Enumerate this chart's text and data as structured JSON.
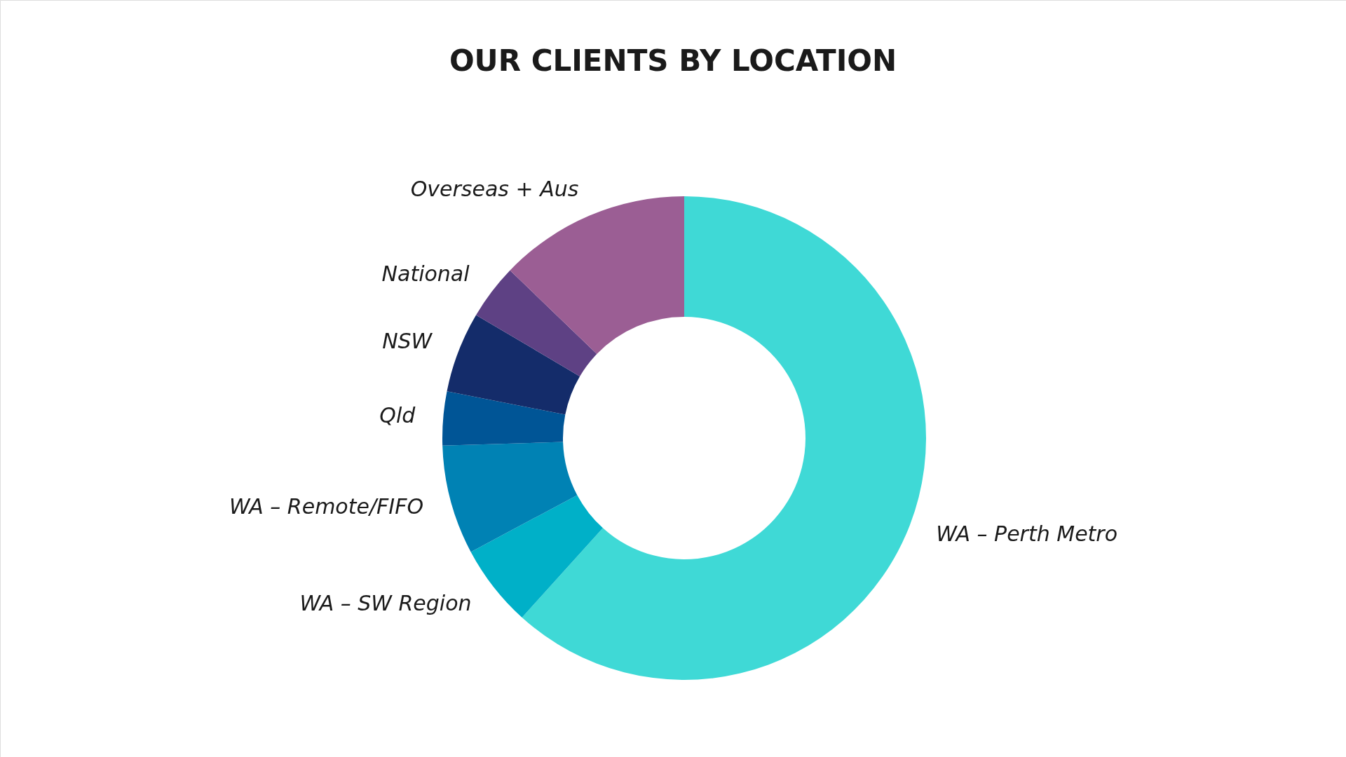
{
  "chart_data": {
    "type": "donut",
    "title": "OUR CLIENTS BY LOCATION",
    "categories": [
      "WA – Perth Metro",
      "WA – SW Region",
      "WA – Remote/FIFO",
      "Qld",
      "NSW",
      "National",
      "Overseas + Aus"
    ],
    "values": [
      61.7,
      5.5,
      7.3,
      3.6,
      5.4,
      3.7,
      12.8
    ],
    "colors": [
      "#3fd9d6",
      "#00b0c8",
      "#0082b4",
      "#005596",
      "#142c6a",
      "#5e4184",
      "#9b5e94"
    ],
    "legend": false
  }
}
